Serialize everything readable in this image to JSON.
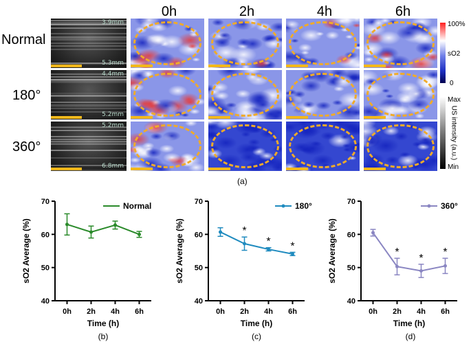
{
  "figure": {
    "col_headers": [
      "0h",
      "2h",
      "4h",
      "6h"
    ],
    "rows": [
      {
        "label": "Normal",
        "depth_top": "3.9mm",
        "depth_bottom": "5.3mm"
      },
      {
        "label": "180°",
        "depth_top": "4.4mm",
        "depth_bottom": "5.2mm"
      },
      {
        "label": "360°",
        "depth_top": "5.2mm",
        "depth_bottom": "6.8mm"
      }
    ],
    "so2_colorbar": {
      "max": "100%",
      "min": "0",
      "label": "sO2"
    },
    "us_colorbar": {
      "max": "Max",
      "min": "Min",
      "label": "US intensity (a.u.)"
    },
    "panel_a": "(a)"
  },
  "chart_data": [
    {
      "type": "line",
      "panel": "(b)",
      "xlabel": "Time (h)",
      "ylabel": "sO2 Average (%)",
      "categories": [
        "0h",
        "2h",
        "4h",
        "6h"
      ],
      "ylim": [
        40,
        70
      ],
      "yticks": [
        40,
        50,
        60,
        70
      ],
      "color": "#2a8a2a",
      "series": [
        {
          "name": "Normal",
          "values": [
            63,
            60.7,
            62.8,
            60
          ],
          "errors": [
            3.2,
            1.8,
            1.2,
            0.9
          ]
        }
      ],
      "significance": [
        "",
        "",
        "",
        ""
      ]
    },
    {
      "type": "line",
      "panel": "(c)",
      "xlabel": "Time (h)",
      "ylabel": "sO2 Average (%)",
      "categories": [
        "0h",
        "2h",
        "4h",
        "6h"
      ],
      "ylim": [
        40,
        70
      ],
      "yticks": [
        40,
        50,
        60,
        70
      ],
      "color": "#1f8bbf",
      "series": [
        {
          "name": "180°",
          "values": [
            60.7,
            57.2,
            55.5,
            54.1
          ],
          "errors": [
            1.3,
            2.0,
            0.5,
            0.5
          ]
        }
      ],
      "significance": [
        "",
        "*",
        "*",
        "*"
      ]
    },
    {
      "type": "line",
      "panel": "(d)",
      "xlabel": "Time (h)",
      "ylabel": "sO2 Average (%)",
      "categories": [
        "0h",
        "2h",
        "4h",
        "6h"
      ],
      "ylim": [
        40,
        70
      ],
      "yticks": [
        40,
        50,
        60,
        70
      ],
      "color": "#8a86c2",
      "series": [
        {
          "name": "360°",
          "values": [
            60.5,
            50.3,
            49.0,
            50.5
          ],
          "errors": [
            1.0,
            2.5,
            2.0,
            2.3
          ]
        }
      ],
      "significance": [
        "",
        "*",
        "*",
        "*"
      ]
    }
  ]
}
